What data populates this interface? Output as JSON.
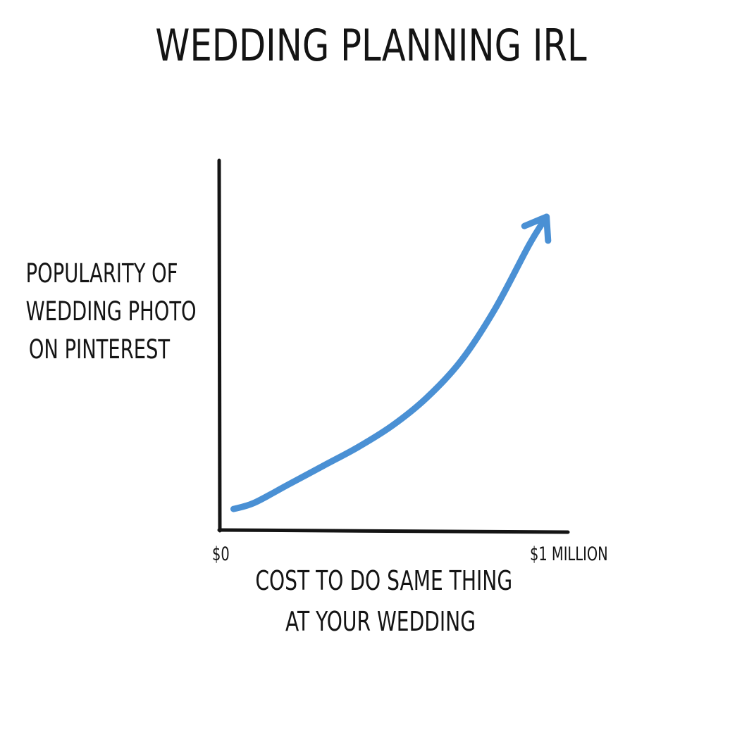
{
  "chart_data": {
    "type": "line",
    "title": "WEDDING PLANNING IRL",
    "ylabel_lines": [
      "POPULARITY OF",
      "WEDDING PHOTO",
      "ON PINTEREST"
    ],
    "xlabel_lines": [
      "COST TO DO SAME THING",
      "AT YOUR WEDDING"
    ],
    "x_tick_labels": [
      "$0",
      "$1 MILLION"
    ],
    "xlim": [
      0,
      1
    ],
    "ylim": [
      0,
      1
    ],
    "grid": false,
    "legend": "none",
    "series": [
      {
        "color": "#4a90d4",
        "arrow_at_end": true,
        "x": [
          0.04,
          0.1,
          0.2,
          0.3,
          0.4,
          0.5,
          0.6,
          0.7,
          0.8,
          0.9,
          0.95
        ],
        "y": [
          0.05,
          0.07,
          0.13,
          0.19,
          0.25,
          0.32,
          0.41,
          0.53,
          0.7,
          0.91,
          1.0
        ]
      }
    ]
  }
}
